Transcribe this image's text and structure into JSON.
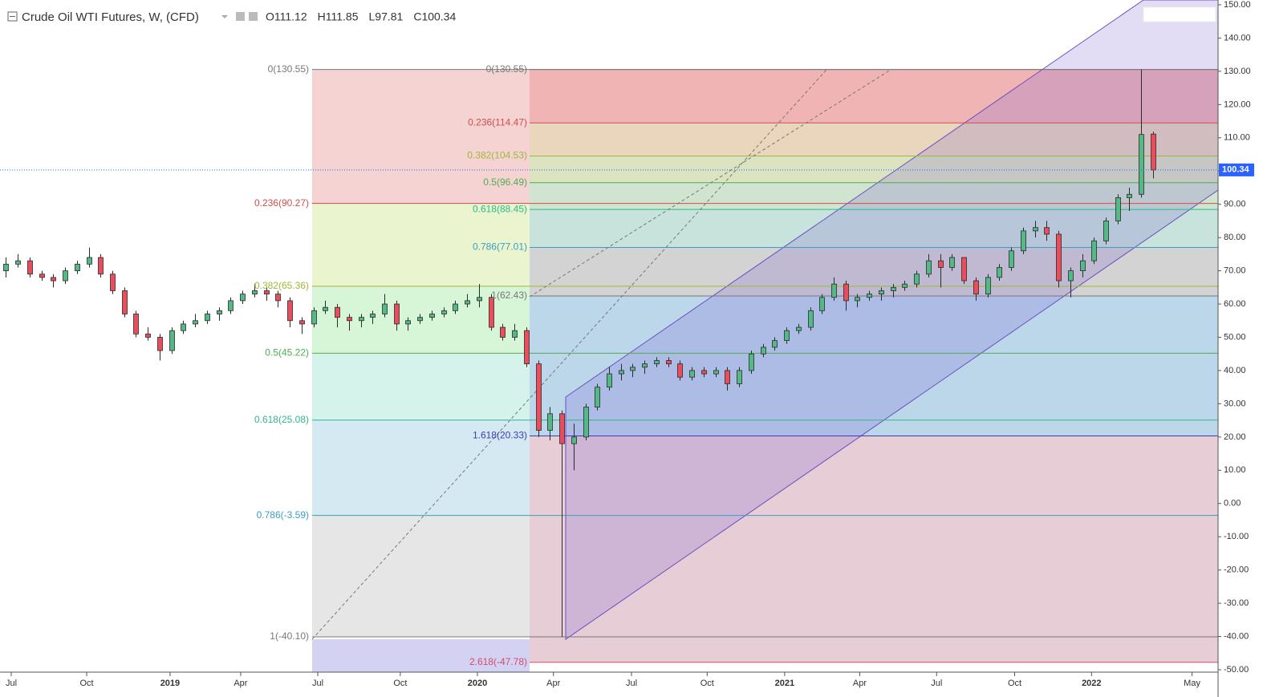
{
  "chart_data": {
    "type": "candlestick",
    "title": "Crude Oil WTI Futures, W, (CFD)",
    "ohlc_legend": [
      "O111.12",
      "H111.85",
      "L97.81",
      "C100.34"
    ],
    "colors": {
      "up": "#53b987",
      "down": "#eb4d5c",
      "border": "#2b2b2b",
      "last": "#2962ff"
    },
    "ylim": [
      -52,
      151.5
    ],
    "xlim": [
      -0.5,
      102.5
    ],
    "yticks": [
      {
        "value": 150,
        "label": "150.00"
      },
      {
        "value": 140,
        "label": "140.00"
      },
      {
        "value": 130,
        "label": "130.00"
      },
      {
        "value": 120,
        "label": "120.00"
      },
      {
        "value": 110,
        "label": "110.00"
      },
      {
        "value": 100,
        "label": "100.00"
      },
      {
        "value": 90,
        "label": "90.00"
      },
      {
        "value": 80,
        "label": "80.00"
      },
      {
        "value": 70,
        "label": "70.00"
      },
      {
        "value": 60,
        "label": "60.00"
      },
      {
        "value": 50,
        "label": "50.00"
      },
      {
        "value": 40,
        "label": "40.00"
      },
      {
        "value": 30,
        "label": "30.00"
      },
      {
        "value": 20,
        "label": "20.00"
      },
      {
        "value": 10,
        "label": "10.00"
      },
      {
        "value": 0,
        "label": "0.00"
      },
      {
        "value": -10,
        "label": "-10.00"
      },
      {
        "value": -20,
        "label": "-20.00"
      },
      {
        "value": -30,
        "label": "-30.00"
      },
      {
        "value": -40,
        "label": "-40.00"
      },
      {
        "value": -50,
        "label": "-50.00"
      }
    ],
    "xticks": [
      {
        "value": 0.45,
        "label": "Jul"
      },
      {
        "value": 6.83,
        "label": "Oct"
      },
      {
        "value": 13.88,
        "label": "2019"
      },
      {
        "value": 19.85,
        "label": "Apr"
      },
      {
        "value": 26.37,
        "label": "Jul"
      },
      {
        "value": 33.35,
        "label": "Oct"
      },
      {
        "value": 39.87,
        "label": "2020"
      },
      {
        "value": 46.3,
        "label": "Apr"
      },
      {
        "value": 52.9,
        "label": "Jul"
      },
      {
        "value": 59.3,
        "label": "Oct"
      },
      {
        "value": 65.85,
        "label": "2021"
      },
      {
        "value": 72.2,
        "label": "Apr"
      },
      {
        "value": 78.7,
        "label": "Jul"
      },
      {
        "value": 85.3,
        "label": "Oct"
      },
      {
        "value": 91.8,
        "label": "2022"
      },
      {
        "value": 100.3,
        "label": "May"
      }
    ],
    "last_price": {
      "value": 100.34,
      "label": "100.34"
    },
    "fibs": [
      {
        "levels": [
          {
            "value": 130.55,
            "label": "0(130.55)",
            "color": "#787878"
          },
          {
            "value": 90.27,
            "label": "0.236(90.27)",
            "color": "#d54c4c"
          },
          {
            "value": 65.36,
            "label": "0.382(65.36)",
            "color": "#9fb83a"
          },
          {
            "value": 45.22,
            "label": "0.5(45.22)",
            "color": "#4caf50"
          },
          {
            "value": 25.08,
            "label": "0.618(25.08)",
            "color": "#2fb88a"
          },
          {
            "value": -3.59,
            "label": "0.786(-3.59)",
            "color": "#3a9fc0"
          },
          {
            "value": -40.1,
            "label": "1(-40.10)",
            "color": "#787878"
          }
        ],
        "fills": [
          "#f5d3d3",
          "#eaf5cf",
          "#d7f5d7",
          "#d5f3ea",
          "#d5e9f3",
          "#e6e6e6"
        ]
      },
      {
        "levels": [
          {
            "value": 130.55,
            "label": "0(130.55)",
            "color": "#787878"
          },
          {
            "value": 114.47,
            "label": "0.236(114.47)",
            "color": "#d54c4c"
          },
          {
            "value": 104.53,
            "label": "0.382(104.53)",
            "color": "#9fb83a"
          },
          {
            "value": 96.49,
            "label": "0.5(96.49)",
            "color": "#4caf50"
          },
          {
            "value": 88.45,
            "label": "0.618(88.45)",
            "color": "#2fb88a"
          },
          {
            "value": 77.01,
            "label": "0.786(77.01)",
            "color": "#3a9fc0"
          },
          {
            "value": 62.43,
            "label": "1(62.43)",
            "color": "#787878"
          },
          {
            "value": 20.33,
            "label": "1.618(20.33)",
            "color": "#3c3cb8"
          },
          {
            "value": -47.78,
            "label": "2.618(-47.78)",
            "color": "#d54c6a"
          }
        ],
        "fills": [
          "#f0b4b4",
          "#ead6bc",
          "#dbe3c0",
          "#cfe5cf",
          "#c8e3dc",
          "#d3d3d3",
          "#bcd6ea",
          "#e6cdd6"
        ]
      }
    ],
    "ohlc": [
      [
        70,
        74,
        68,
        72
      ],
      [
        72,
        75,
        71,
        73
      ],
      [
        73,
        74,
        68,
        69
      ],
      [
        69,
        70,
        67,
        68
      ],
      [
        68,
        69,
        65,
        67
      ],
      [
        67,
        71,
        66,
        70
      ],
      [
        70,
        73,
        69,
        72
      ],
      [
        72,
        77,
        71,
        74
      ],
      [
        74,
        75,
        68,
        69
      ],
      [
        69,
        70,
        63,
        64
      ],
      [
        64,
        65,
        56,
        57
      ],
      [
        57,
        58,
        50,
        51
      ],
      [
        51,
        53,
        49,
        50
      ],
      [
        50,
        51,
        43,
        46
      ],
      [
        46,
        53,
        45,
        52
      ],
      [
        52,
        55,
        51,
        54
      ],
      [
        54,
        57,
        53,
        55
      ],
      [
        55,
        58,
        54,
        57
      ],
      [
        57,
        59,
        55,
        58
      ],
      [
        58,
        62,
        57,
        61
      ],
      [
        61,
        64,
        60,
        63
      ],
      [
        63,
        66,
        62,
        64
      ],
      [
        64,
        65,
        61,
        63
      ],
      [
        63,
        64,
        59,
        61
      ],
      [
        61,
        62,
        53,
        55
      ],
      [
        55,
        56,
        51,
        54
      ],
      [
        54,
        59,
        53,
        58
      ],
      [
        58,
        61,
        57,
        59
      ],
      [
        59,
        60,
        53,
        56
      ],
      [
        56,
        57,
        52,
        55
      ],
      [
        55,
        57,
        53,
        56
      ],
      [
        56,
        58,
        54,
        57
      ],
      [
        57,
        63,
        56,
        60
      ],
      [
        60,
        61,
        52,
        54
      ],
      [
        54,
        56,
        52,
        55
      ],
      [
        55,
        57,
        54,
        56
      ],
      [
        56,
        58,
        55,
        57
      ],
      [
        57,
        59,
        56,
        58
      ],
      [
        58,
        61,
        57,
        60
      ],
      [
        60,
        63,
        59,
        61
      ],
      [
        61,
        66,
        59,
        62
      ],
      [
        62,
        63,
        52,
        53
      ],
      [
        53,
        54,
        49,
        50
      ],
      [
        50,
        54,
        49,
        52
      ],
      [
        52,
        53,
        41,
        42
      ],
      [
        42,
        43,
        20,
        22
      ],
      [
        22,
        29,
        19,
        27
      ],
      [
        27,
        28,
        -40.1,
        18
      ],
      [
        18,
        24,
        10,
        20
      ],
      [
        20,
        30,
        19,
        29
      ],
      [
        29,
        36,
        28,
        35
      ],
      [
        35,
        41,
        34,
        39
      ],
      [
        39,
        42,
        37,
        40
      ],
      [
        40,
        42,
        38,
        41
      ],
      [
        41,
        43,
        39,
        42
      ],
      [
        42,
        44,
        41,
        43
      ],
      [
        43,
        44,
        41,
        42
      ],
      [
        42,
        43,
        37,
        38
      ],
      [
        38,
        41,
        37,
        40
      ],
      [
        40,
        41,
        38,
        39
      ],
      [
        39,
        41,
        38,
        40
      ],
      [
        40,
        41,
        34,
        36
      ],
      [
        36,
        41,
        35,
        40
      ],
      [
        40,
        46,
        39,
        45
      ],
      [
        45,
        48,
        44,
        47
      ],
      [
        47,
        50,
        46,
        49
      ],
      [
        49,
        53,
        48,
        52
      ],
      [
        52,
        54,
        51,
        53
      ],
      [
        53,
        59,
        52,
        58
      ],
      [
        58,
        63,
        57,
        62
      ],
      [
        62,
        68,
        61,
        66
      ],
      [
        66,
        67,
        58,
        61
      ],
      [
        61,
        63,
        59,
        62
      ],
      [
        62,
        64,
        61,
        63
      ],
      [
        63,
        65,
        61,
        64
      ],
      [
        64,
        66,
        62,
        65
      ],
      [
        65,
        67,
        64,
        66
      ],
      [
        66,
        70,
        65,
        69
      ],
      [
        69,
        75,
        68,
        73
      ],
      [
        73,
        75,
        65,
        71
      ],
      [
        71,
        75,
        70,
        74
      ],
      [
        74,
        74,
        66,
        67
      ],
      [
        67,
        68,
        61,
        63
      ],
      [
        63,
        69,
        62,
        68
      ],
      [
        68,
        72,
        67,
        71
      ],
      [
        71,
        77,
        70,
        76
      ],
      [
        76,
        83,
        75,
        82
      ],
      [
        82,
        85,
        80,
        83
      ],
      [
        83,
        85,
        79,
        81
      ],
      [
        81,
        82,
        65,
        67
      ],
      [
        67,
        71,
        62,
        70
      ],
      [
        70,
        75,
        68,
        73
      ],
      [
        73,
        80,
        72,
        79
      ],
      [
        79,
        86,
        78,
        85
      ],
      [
        85,
        93,
        84,
        92
      ],
      [
        92,
        95,
        88,
        93
      ],
      [
        93,
        130.55,
        92,
        111
      ],
      [
        111.12,
        111.85,
        97.81,
        100.34
      ]
    ]
  }
}
